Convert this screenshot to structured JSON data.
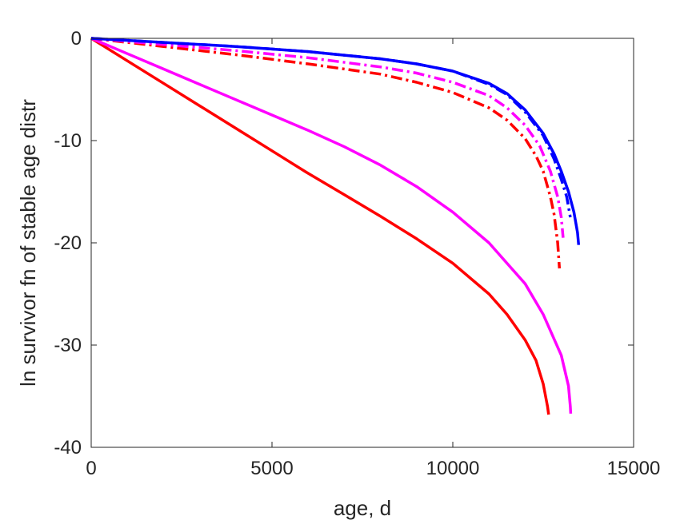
{
  "chart_data": {
    "type": "line",
    "title": "",
    "xlabel": "age, d",
    "ylabel": "ln survivor fn of stable age distr",
    "xlim": [
      0,
      15000
    ],
    "ylim": [
      -40,
      0
    ],
    "xticks": [
      0,
      5000,
      10000,
      15000
    ],
    "yticks": [
      0,
      -10,
      -20,
      -30,
      -40
    ],
    "xtick_labels": [
      "0",
      "5000",
      "10000",
      "15000"
    ],
    "ytick_labels": [
      "0",
      "-10",
      "-20",
      "-30",
      "-40"
    ],
    "grid": false,
    "legend": "none",
    "series": [
      {
        "color": "#ff0000",
        "style": "solid",
        "points": [
          [
            0,
            0
          ],
          [
            1000,
            -2.2
          ],
          [
            2000,
            -4.4
          ],
          [
            3000,
            -6.6
          ],
          [
            4000,
            -8.8
          ],
          [
            5000,
            -11.0
          ],
          [
            6000,
            -13.2
          ],
          [
            7000,
            -15.3
          ],
          [
            8000,
            -17.4
          ],
          [
            9000,
            -19.6
          ],
          [
            10000,
            -22.0
          ],
          [
            11000,
            -25.0
          ],
          [
            11500,
            -27.0
          ],
          [
            12000,
            -29.5
          ],
          [
            12300,
            -31.5
          ],
          [
            12500,
            -33.8
          ],
          [
            12620,
            -36.0
          ],
          [
            12650,
            -36.8
          ]
        ]
      },
      {
        "color": "#ff00ff",
        "style": "solid",
        "points": [
          [
            0,
            0
          ],
          [
            1000,
            -1.5
          ],
          [
            2000,
            -3.0
          ],
          [
            3000,
            -4.5
          ],
          [
            4000,
            -6.0
          ],
          [
            5000,
            -7.5
          ],
          [
            6000,
            -9.0
          ],
          [
            7000,
            -10.6
          ],
          [
            8000,
            -12.4
          ],
          [
            9000,
            -14.5
          ],
          [
            10000,
            -17.0
          ],
          [
            11000,
            -20.0
          ],
          [
            12000,
            -24.0
          ],
          [
            12500,
            -27.0
          ],
          [
            13000,
            -31.0
          ],
          [
            13200,
            -34.0
          ],
          [
            13250,
            -36.0
          ],
          [
            13260,
            -36.7
          ]
        ]
      },
      {
        "color": "#ff0000",
        "style": "dashdot",
        "points": [
          [
            0,
            0
          ],
          [
            2000,
            -0.8
          ],
          [
            4000,
            -1.6
          ],
          [
            6000,
            -2.5
          ],
          [
            8000,
            -3.5
          ],
          [
            9000,
            -4.3
          ],
          [
            10000,
            -5.3
          ],
          [
            11000,
            -6.8
          ],
          [
            11500,
            -8.0
          ],
          [
            12000,
            -9.8
          ],
          [
            12300,
            -11.5
          ],
          [
            12500,
            -13.0
          ],
          [
            12700,
            -15.5
          ],
          [
            12800,
            -17.2
          ],
          [
            12900,
            -20.0
          ],
          [
            12950,
            -22.5
          ]
        ]
      },
      {
        "color": "#ff00ff",
        "style": "dashdot",
        "points": [
          [
            0,
            0
          ],
          [
            2000,
            -0.6
          ],
          [
            4000,
            -1.2
          ],
          [
            6000,
            -1.9
          ],
          [
            8000,
            -2.8
          ],
          [
            9000,
            -3.4
          ],
          [
            10000,
            -4.3
          ],
          [
            11000,
            -5.6
          ],
          [
            11500,
            -6.8
          ],
          [
            12000,
            -8.5
          ],
          [
            12400,
            -10.5
          ],
          [
            12700,
            -13.0
          ],
          [
            12900,
            -15.5
          ],
          [
            13000,
            -17.5
          ],
          [
            13050,
            -19.5
          ]
        ]
      },
      {
        "color": "#0000ff",
        "style": "dashdot",
        "points": [
          [
            0,
            0
          ],
          [
            2000,
            -0.4
          ],
          [
            4000,
            -0.8
          ],
          [
            6000,
            -1.3
          ],
          [
            8000,
            -2.0
          ],
          [
            9000,
            -2.5
          ],
          [
            10000,
            -3.2
          ],
          [
            11000,
            -4.5
          ],
          [
            11500,
            -5.5
          ],
          [
            12000,
            -7.2
          ],
          [
            12500,
            -9.5
          ],
          [
            12800,
            -11.8
          ],
          [
            13000,
            -13.8
          ],
          [
            13150,
            -15.5
          ],
          [
            13250,
            -17.5
          ]
        ]
      },
      {
        "color": "#0000ff",
        "style": "solid",
        "points": [
          [
            0,
            0
          ],
          [
            2000,
            -0.4
          ],
          [
            4000,
            -0.8
          ],
          [
            6000,
            -1.3
          ],
          [
            8000,
            -2.0
          ],
          [
            9000,
            -2.5
          ],
          [
            10000,
            -3.2
          ],
          [
            11000,
            -4.4
          ],
          [
            11500,
            -5.4
          ],
          [
            12000,
            -7.0
          ],
          [
            12500,
            -9.3
          ],
          [
            12800,
            -11.3
          ],
          [
            13000,
            -13.0
          ],
          [
            13200,
            -15.0
          ],
          [
            13350,
            -17.0
          ],
          [
            13450,
            -19.0
          ],
          [
            13480,
            -20.2
          ]
        ]
      }
    ]
  }
}
